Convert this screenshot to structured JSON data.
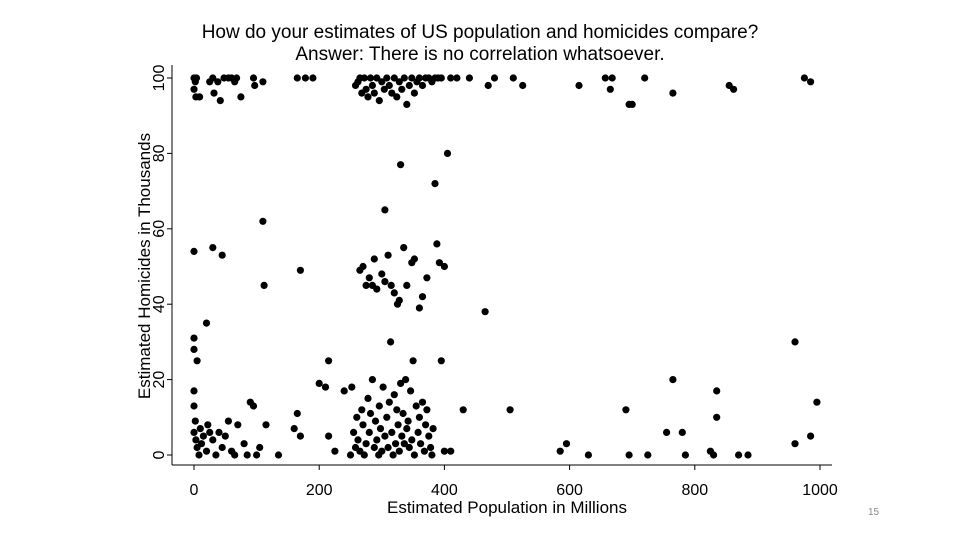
{
  "slide": {
    "page_number": "15"
  },
  "chart_data": {
    "type": "scatter",
    "title": "How do your estimates of US population and homicides compare?",
    "subtitle": "Answer: There is no correlation whatsoever.",
    "xlabel": "Estimated Population in Millions",
    "ylabel": "Estimated Homicides in Thousands",
    "xlim": [
      0,
      1000
    ],
    "ylim": [
      0,
      100
    ],
    "xticks": [
      0,
      200,
      400,
      600,
      800,
      1000
    ],
    "yticks": [
      0,
      20,
      40,
      60,
      80,
      100
    ],
    "xtick_labels": [
      "0",
      "200",
      "400",
      "600",
      "800",
      "1000"
    ],
    "ytick_labels": [
      "0",
      "20",
      "40",
      "60",
      "80",
      "100"
    ],
    "grid": false,
    "color": "#000000",
    "points": [
      [
        0,
        100
      ],
      [
        2,
        99
      ],
      [
        4,
        100
      ],
      [
        0,
        97
      ],
      [
        3,
        95
      ],
      [
        9,
        95
      ],
      [
        25,
        99
      ],
      [
        30,
        100
      ],
      [
        32,
        96
      ],
      [
        38,
        99
      ],
      [
        42,
        94
      ],
      [
        48,
        100
      ],
      [
        55,
        100
      ],
      [
        60,
        100
      ],
      [
        65,
        99
      ],
      [
        68,
        100
      ],
      [
        75,
        95
      ],
      [
        95,
        100
      ],
      [
        97,
        98
      ],
      [
        110,
        99
      ],
      [
        165,
        100
      ],
      [
        178,
        100
      ],
      [
        190,
        100
      ],
      [
        258,
        98
      ],
      [
        262,
        99
      ],
      [
        265,
        100
      ],
      [
        268,
        96
      ],
      [
        272,
        100
      ],
      [
        275,
        97
      ],
      [
        278,
        95
      ],
      [
        282,
        100
      ],
      [
        285,
        98
      ],
      [
        288,
        96
      ],
      [
        292,
        100
      ],
      [
        296,
        94
      ],
      [
        300,
        99
      ],
      [
        304,
        97
      ],
      [
        308,
        100
      ],
      [
        312,
        98
      ],
      [
        316,
        96
      ],
      [
        320,
        100
      ],
      [
        324,
        95
      ],
      [
        328,
        99
      ],
      [
        332,
        97
      ],
      [
        336,
        100
      ],
      [
        340,
        93
      ],
      [
        344,
        98
      ],
      [
        348,
        100
      ],
      [
        352,
        96
      ],
      [
        356,
        99
      ],
      [
        360,
        100
      ],
      [
        365,
        98
      ],
      [
        370,
        100
      ],
      [
        375,
        100
      ],
      [
        380,
        99
      ],
      [
        385,
        100
      ],
      [
        390,
        100
      ],
      [
        395,
        100
      ],
      [
        410,
        100
      ],
      [
        420,
        100
      ],
      [
        440,
        100
      ],
      [
        470,
        98
      ],
      [
        480,
        100
      ],
      [
        510,
        100
      ],
      [
        525,
        98
      ],
      [
        615,
        98
      ],
      [
        657,
        100
      ],
      [
        665,
        97
      ],
      [
        668,
        100
      ],
      [
        695,
        93
      ],
      [
        700,
        93
      ],
      [
        720,
        100
      ],
      [
        765,
        96
      ],
      [
        855,
        98
      ],
      [
        862,
        97
      ],
      [
        975,
        100
      ],
      [
        985,
        99
      ],
      [
        0,
        54
      ],
      [
        30,
        55
      ],
      [
        45,
        53
      ],
      [
        110,
        62
      ],
      [
        112,
        45
      ],
      [
        170,
        49
      ],
      [
        265,
        49
      ],
      [
        270,
        50
      ],
      [
        275,
        45
      ],
      [
        280,
        47
      ],
      [
        285,
        45
      ],
      [
        288,
        52
      ],
      [
        292,
        44
      ],
      [
        300,
        48
      ],
      [
        305,
        46
      ],
      [
        310,
        53
      ],
      [
        315,
        45
      ],
      [
        320,
        43
      ],
      [
        325,
        40
      ],
      [
        328,
        41
      ],
      [
        330,
        77
      ],
      [
        335,
        55
      ],
      [
        340,
        45
      ],
      [
        348,
        51
      ],
      [
        352,
        52
      ],
      [
        360,
        39
      ],
      [
        365,
        42
      ],
      [
        372,
        47
      ],
      [
        385,
        72
      ],
      [
        388,
        56
      ],
      [
        392,
        51
      ],
      [
        400,
        50
      ],
      [
        405,
        80
      ],
      [
        465,
        38
      ],
      [
        305,
        65
      ],
      [
        0,
        31
      ],
      [
        0,
        28
      ],
      [
        5,
        25
      ],
      [
        20,
        35
      ],
      [
        0,
        17
      ],
      [
        0,
        13
      ],
      [
        2,
        9
      ],
      [
        0,
        6
      ],
      [
        3,
        4
      ],
      [
        5,
        2
      ],
      [
        8,
        0
      ],
      [
        10,
        7
      ],
      [
        12,
        3
      ],
      [
        15,
        5
      ],
      [
        20,
        1
      ],
      [
        22,
        8
      ],
      [
        25,
        6
      ],
      [
        30,
        4
      ],
      [
        35,
        0
      ],
      [
        40,
        6
      ],
      [
        45,
        2
      ],
      [
        50,
        5
      ],
      [
        55,
        9
      ],
      [
        60,
        1
      ],
      [
        65,
        0
      ],
      [
        70,
        8
      ],
      [
        80,
        3
      ],
      [
        85,
        0
      ],
      [
        90,
        14
      ],
      [
        95,
        13
      ],
      [
        100,
        0
      ],
      [
        105,
        2
      ],
      [
        115,
        8
      ],
      [
        135,
        0
      ],
      [
        160,
        7
      ],
      [
        165,
        11
      ],
      [
        170,
        5
      ],
      [
        200,
        19
      ],
      [
        210,
        18
      ],
      [
        215,
        25
      ],
      [
        215,
        5
      ],
      [
        225,
        1
      ],
      [
        240,
        17
      ],
      [
        250,
        0
      ],
      [
        252,
        18
      ],
      [
        255,
        6
      ],
      [
        258,
        2
      ],
      [
        260,
        10
      ],
      [
        262,
        4
      ],
      [
        265,
        1
      ],
      [
        268,
        12
      ],
      [
        270,
        8
      ],
      [
        272,
        0
      ],
      [
        275,
        3
      ],
      [
        278,
        15
      ],
      [
        280,
        6
      ],
      [
        282,
        11
      ],
      [
        285,
        20
      ],
      [
        288,
        2
      ],
      [
        290,
        9
      ],
      [
        292,
        4
      ],
      [
        295,
        0
      ],
      [
        296,
        13
      ],
      [
        298,
        7
      ],
      [
        300,
        1
      ],
      [
        302,
        18
      ],
      [
        305,
        5
      ],
      [
        308,
        10
      ],
      [
        310,
        2
      ],
      [
        312,
        14
      ],
      [
        314,
        30
      ],
      [
        316,
        6
      ],
      [
        318,
        0
      ],
      [
        320,
        16
      ],
      [
        322,
        3
      ],
      [
        324,
        12
      ],
      [
        326,
        8
      ],
      [
        328,
        1
      ],
      [
        330,
        19
      ],
      [
        332,
        5
      ],
      [
        334,
        11
      ],
      [
        336,
        3
      ],
      [
        338,
        20
      ],
      [
        340,
        7
      ],
      [
        342,
        9
      ],
      [
        344,
        2
      ],
      [
        346,
        17
      ],
      [
        348,
        4
      ],
      [
        350,
        25
      ],
      [
        352,
        0
      ],
      [
        355,
        13
      ],
      [
        358,
        6
      ],
      [
        360,
        10
      ],
      [
        362,
        3
      ],
      [
        365,
        14
      ],
      [
        368,
        1
      ],
      [
        370,
        8
      ],
      [
        372,
        12
      ],
      [
        375,
        5
      ],
      [
        378,
        2
      ],
      [
        380,
        0
      ],
      [
        382,
        7
      ],
      [
        395,
        25
      ],
      [
        400,
        1
      ],
      [
        410,
        1
      ],
      [
        430,
        12
      ],
      [
        505,
        12
      ],
      [
        585,
        1
      ],
      [
        595,
        3
      ],
      [
        630,
        0
      ],
      [
        690,
        12
      ],
      [
        695,
        0
      ],
      [
        725,
        0
      ],
      [
        755,
        6
      ],
      [
        765,
        20
      ],
      [
        780,
        6
      ],
      [
        785,
        0
      ],
      [
        825,
        1
      ],
      [
        830,
        0
      ],
      [
        835,
        10
      ],
      [
        835,
        17
      ],
      [
        870,
        0
      ],
      [
        885,
        0
      ],
      [
        960,
        30
      ],
      [
        960,
        3
      ],
      [
        985,
        5
      ],
      [
        995,
        14
      ]
    ]
  }
}
